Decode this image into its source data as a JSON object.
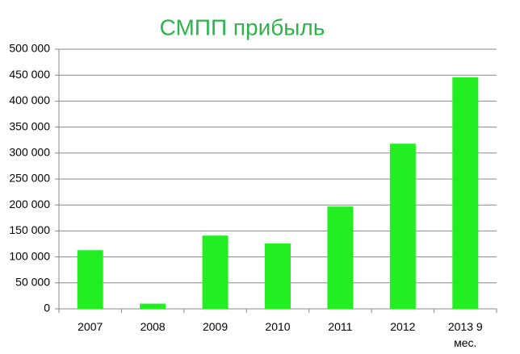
{
  "chart_data": {
    "type": "bar",
    "title": "СМПП прибыль",
    "categories": [
      "2007",
      "2008",
      "2009",
      "2010",
      "2011",
      "2012",
      "2013 9 мес."
    ],
    "values": [
      113000,
      10000,
      141000,
      126000,
      197000,
      318000,
      446000
    ],
    "color": "#22ee22",
    "ylim": [
      0,
      500000
    ],
    "yticks": [
      0,
      {
        "value": 50000,
        "label": "50 000"
      },
      {
        "value": 100000,
        "label": "100 000"
      },
      {
        "value": 150000,
        "label": "150 000"
      },
      {
        "value": 200000,
        "label": "200 000"
      },
      {
        "value": 250000,
        "label": "250 000"
      },
      {
        "value": 300000,
        "label": "300 000"
      },
      {
        "value": 350000,
        "label": "350 000"
      },
      {
        "value": 400000,
        "label": "400 000"
      },
      {
        "value": 450000,
        "label": "450 000"
      },
      {
        "value": 500000,
        "label": "500 000"
      }
    ],
    "grid": true
  }
}
